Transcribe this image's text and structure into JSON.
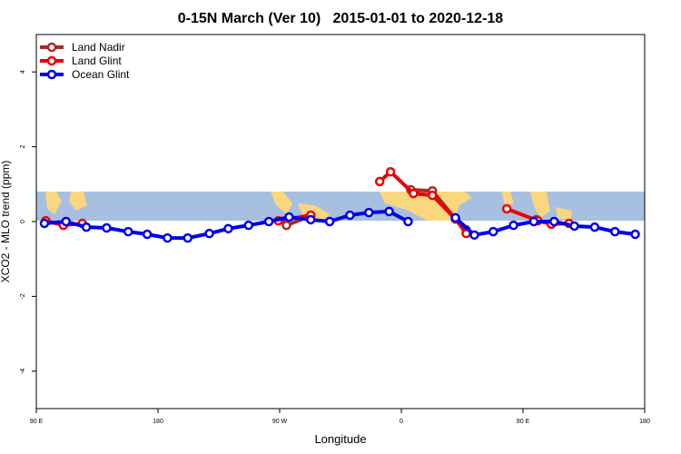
{
  "chart_data": {
    "type": "line",
    "title": "0-15N March (Ver 10)   2015-01-01 to 2020-12-18",
    "x_label": "Longitude",
    "y_label": "XCO2 - MLO trend (ppm)",
    "xlim": [
      90,
      540
    ],
    "xticks": [
      {
        "value": 90,
        "label": "90 E"
      },
      180,
      {
        "value": 270,
        "label": "90 W"
      },
      {
        "value": 360,
        "label": "0"
      },
      {
        "value": 450,
        "label": "90 E"
      },
      {
        "value": 540,
        "label": "180"
      }
    ],
    "ylim": [
      -5,
      5
    ],
    "yticks": [
      -4,
      -2,
      0,
      2,
      4
    ],
    "legend": "top-left",
    "series": [
      {
        "name": "Land Nadir",
        "color": "#a52a2a",
        "x": [
          275,
          293,
          null,
          367,
          383,
          400,
          408,
          null,
          460
        ],
        "values": [
          -0.1,
          0.15,
          null,
          0.85,
          0.82,
          0.07,
          -0.22,
          null,
          0.05
        ]
      },
      {
        "name": "Land Glint",
        "color": "#ee0000",
        "x": [
          97,
          110,
          124,
          null,
          269,
          293,
          null,
          344,
          352,
          369,
          383,
          400,
          408,
          null,
          438,
          461,
          471,
          484
        ],
        "values": [
          0.02,
          -0.1,
          -0.05,
          null,
          0.02,
          0.17,
          null,
          1.07,
          1.33,
          0.75,
          0.7,
          0.07,
          -0.32,
          null,
          0.34,
          0.02,
          -0.07,
          -0.05
        ]
      },
      {
        "name": "Ocean Glint",
        "color": "#0000ee",
        "x": [
          96,
          112,
          127,
          142,
          158,
          172,
          187,
          202,
          218,
          232,
          247,
          262,
          277,
          293,
          307,
          322,
          336,
          351,
          365,
          null,
          400,
          414,
          428,
          443,
          458,
          473,
          488,
          503,
          518,
          533
        ],
        "values": [
          -0.05,
          0,
          -0.15,
          -0.17,
          -0.27,
          -0.34,
          -0.44,
          -0.44,
          -0.32,
          -0.19,
          -0.1,
          0,
          0.12,
          0.05,
          0,
          0.17,
          0.24,
          0.27,
          0,
          null,
          0.1,
          -0.36,
          -0.27,
          -0.1,
          0,
          0,
          -0.12,
          -0.15,
          -0.27,
          -0.34
        ]
      }
    ]
  }
}
